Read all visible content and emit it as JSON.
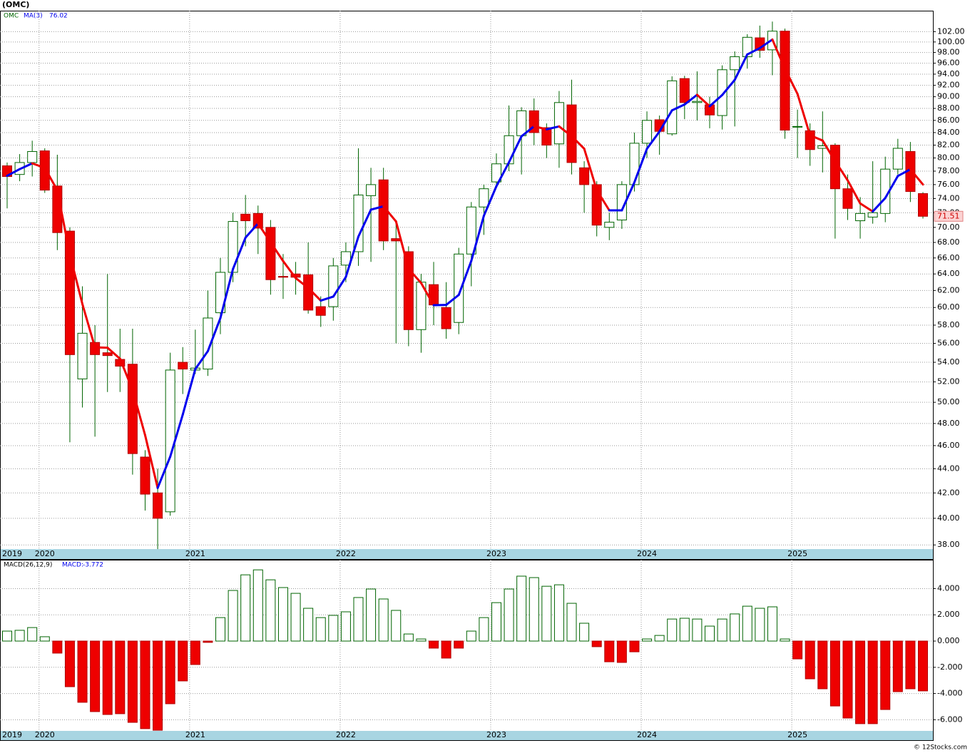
{
  "chart_data": [
    {
      "type": "candlestick",
      "title": "(OMC)",
      "symbol": "OMC",
      "log_scale": true,
      "grid": true,
      "up_color": "#ffffff",
      "down_color": "#ee0000",
      "outline_color": "#006400",
      "categories": [
        "2019",
        null,
        null,
        "2020",
        null,
        null,
        null,
        null,
        null,
        null,
        null,
        null,
        null,
        null,
        null,
        "2021",
        null,
        null,
        null,
        null,
        null,
        null,
        null,
        null,
        null,
        null,
        null,
        "2022",
        null,
        null,
        null,
        null,
        null,
        null,
        null,
        null,
        null,
        null,
        null,
        "2023",
        null,
        null,
        null,
        null,
        null,
        null,
        null,
        null,
        null,
        null,
        null,
        "2024",
        null,
        null,
        null,
        null,
        null,
        null,
        null,
        null,
        null,
        null,
        null,
        "2025",
        null,
        null,
        null,
        null,
        null,
        null,
        null,
        null,
        null,
        null
      ],
      "open": [
        78.8,
        77.5,
        79.3,
        81.1,
        75.8,
        69.5,
        52.3,
        56.1,
        55.0,
        54.3,
        53.8,
        45.0,
        42.0,
        40.5,
        54.0,
        53.2,
        53.3,
        59.4,
        64.2,
        71.8,
        71.9,
        70.0,
        63.7,
        64.0,
        63.9,
        60.1,
        60.1,
        65.1,
        66.8,
        74.4,
        76.7,
        68.5,
        66.8,
        57.5,
        62.7,
        60.0,
        58.3,
        66.5,
        72.8,
        76.4,
        79.1,
        83.5,
        87.6,
        84.8,
        82.2,
        88.6,
        78.5,
        76.0,
        70.0,
        71.0,
        76.0,
        82.3,
        86.1,
        83.8,
        93.2,
        89.0,
        88.6,
        86.8,
        94.8,
        97.2,
        100.8,
        98.5,
        102.1,
        84.9,
        84.3,
        81.5,
        82.0,
        75.4,
        70.9,
        71.4,
        71.9,
        78.3,
        81.0,
        74.7
      ],
      "high": [
        79.3,
        80.6,
        82.7,
        81.5,
        80.5,
        70.0,
        62.5,
        58.0,
        64.0,
        57.6,
        57.6,
        45.6,
        44.0,
        55.0,
        55.6,
        57.5,
        62.0,
        66.0,
        72.0,
        74.5,
        73.0,
        71.0,
        66.5,
        65.5,
        68.0,
        61.3,
        66.0,
        68.0,
        81.5,
        78.5,
        78.5,
        71.0,
        67.5,
        64.0,
        65.5,
        63.0,
        67.3,
        73.5,
        76.0,
        80.7,
        88.5,
        88.2,
        89.7,
        85.5,
        91.0,
        93.0,
        79.5,
        76.5,
        72.0,
        76.5,
        84.0,
        87.5,
        86.8,
        93.6,
        93.7,
        94.5,
        90.0,
        95.6,
        98.2,
        101.5,
        103.2,
        104.0,
        102.6,
        87.8,
        85.5,
        87.5,
        82.3,
        77.5,
        74.2,
        79.5,
        80.2,
        83.0,
        82.5,
        74.9
      ],
      "low": [
        72.6,
        76.5,
        77.2,
        74.8,
        67.0,
        46.3,
        49.5,
        46.8,
        51.0,
        51.0,
        43.5,
        40.6,
        37.7,
        40.2,
        50.8,
        52.8,
        52.6,
        57.0,
        63.0,
        67.5,
        66.5,
        61.5,
        61.0,
        61.5,
        59.3,
        57.8,
        58.5,
        63.0,
        65.0,
        65.5,
        67.0,
        56.0,
        55.7,
        55.0,
        58.0,
        56.5,
        57.0,
        62.5,
        69.0,
        75.5,
        78.0,
        77.5,
        82.0,
        80.0,
        78.5,
        77.5,
        72.0,
        68.8,
        68.3,
        69.8,
        75.0,
        80.0,
        80.5,
        83.5,
        86.2,
        86.0,
        84.7,
        84.5,
        85.0,
        95.0,
        97.0,
        93.8,
        83.0,
        80.0,
        78.8,
        77.8,
        68.5,
        71.0,
        68.5,
        70.5,
        70.7,
        77.5,
        73.5,
        71.2
      ],
      "close": [
        77.2,
        79.3,
        81.0,
        75.2,
        69.3,
        54.8,
        57.1,
        54.8,
        54.7,
        53.6,
        45.3,
        41.9,
        40.0,
        53.2,
        53.3,
        53.4,
        58.8,
        64.2,
        70.8,
        70.9,
        69.9,
        63.3,
        63.6,
        63.6,
        59.7,
        59.1,
        65.0,
        66.8,
        74.5,
        76.0,
        68.2,
        68.2,
        57.5,
        63.0,
        60.3,
        57.6,
        66.5,
        72.8,
        75.4,
        79.1,
        83.5,
        87.6,
        84.0,
        82.0,
        89.0,
        79.3,
        76.0,
        70.3,
        70.7,
        76.0,
        82.3,
        86.0,
        84.2,
        92.8,
        89.0,
        89.2,
        86.9,
        94.8,
        97.2,
        100.9,
        98.4,
        102.1,
        84.4,
        85.0,
        81.3,
        81.9,
        75.4,
        72.6,
        71.9,
        72.0,
        78.3,
        81.5,
        75.0,
        71.51
      ],
      "series": [
        {
          "name": "MA(3)",
          "up_color": "#0000ee",
          "down_color": "#ee0000",
          "values": [
            77.3,
            78.3,
            79.17,
            78.5,
            75.17,
            66.43,
            60.4,
            55.57,
            55.53,
            54.37,
            51.2,
            46.93,
            42.4,
            45.03,
            48.83,
            53.3,
            55.17,
            58.8,
            64.6,
            68.63,
            70.53,
            68.03,
            65.6,
            63.5,
            62.3,
            60.8,
            61.27,
            63.63,
            68.77,
            72.43,
            72.9,
            70.8,
            64.63,
            62.9,
            60.27,
            60.3,
            61.47,
            65.63,
            71.57,
            75.77,
            79.33,
            83.4,
            85.03,
            84.53,
            85.0,
            83.43,
            81.43,
            75.2,
            72.33,
            72.33,
            76.33,
            81.43,
            84.17,
            87.67,
            88.67,
            90.33,
            88.37,
            90.3,
            92.97,
            97.63,
            98.83,
            100.47,
            94.97,
            90.5,
            83.57,
            82.73,
            79.53,
            76.63,
            73.3,
            72.17,
            74.07,
            77.27,
            78.27,
            76.02
          ]
        }
      ],
      "ylim": [
        37.7,
        106.2
      ],
      "yticks": [
        {
          "value": 38,
          "label": "38.00"
        },
        {
          "value": 40,
          "label": "40.00"
        },
        {
          "value": 42,
          "label": "42.00"
        },
        {
          "value": 44,
          "label": "44.00"
        },
        {
          "value": 46,
          "label": "46.00"
        },
        {
          "value": 48,
          "label": "48.00"
        },
        {
          "value": 50,
          "label": "50.00"
        },
        {
          "value": 52,
          "label": "52.00"
        },
        {
          "value": 54,
          "label": "54.00"
        },
        {
          "value": 56,
          "label": "56.00"
        },
        {
          "value": 58,
          "label": "58.00"
        },
        {
          "value": 60,
          "label": "60.00"
        },
        {
          "value": 62,
          "label": "62.00"
        },
        {
          "value": 64,
          "label": "64.00"
        },
        {
          "value": 66,
          "label": "66.00"
        },
        {
          "value": 68,
          "label": "68.00"
        },
        {
          "value": 70,
          "label": "70.00"
        },
        {
          "value": 72,
          "label": "72.00"
        },
        {
          "value": 74,
          "label": "74.00"
        },
        {
          "value": 76,
          "label": "76.00"
        },
        {
          "value": 78,
          "label": "78.00"
        },
        {
          "value": 80,
          "label": "80.00"
        },
        {
          "value": 82,
          "label": "82.00"
        },
        {
          "value": 84,
          "label": "84.00"
        },
        {
          "value": 86,
          "label": "86.00"
        },
        {
          "value": 88,
          "label": "88.00"
        },
        {
          "value": 90,
          "label": "90.00"
        },
        {
          "value": 92,
          "label": "92.00"
        },
        {
          "value": 94,
          "label": "94.00"
        },
        {
          "value": 96,
          "label": "96.00"
        },
        {
          "value": 98,
          "label": "98.00"
        },
        {
          "value": 100,
          "label": "100.00"
        },
        {
          "value": 102,
          "label": "102.00"
        }
      ]
    },
    {
      "type": "bar",
      "title": "MACD(26,12,9)",
      "indicator_label": "MACD:",
      "indicator_value": -3.772,
      "grid": true,
      "up_color": "#ffffff",
      "down_color": "#ee0000",
      "outline_color": "#006400",
      "categories": [
        "2019",
        null,
        null,
        "2020",
        null,
        null,
        null,
        null,
        null,
        null,
        null,
        null,
        null,
        null,
        null,
        "2021",
        null,
        null,
        null,
        null,
        null,
        null,
        null,
        null,
        null,
        null,
        null,
        "2022",
        null,
        null,
        null,
        null,
        null,
        null,
        null,
        null,
        null,
        null,
        null,
        "2023",
        null,
        null,
        null,
        null,
        null,
        null,
        null,
        null,
        null,
        null,
        null,
        "2024",
        null,
        null,
        null,
        null,
        null,
        null,
        null,
        null,
        null,
        null,
        null,
        "2025",
        null,
        null,
        null,
        null,
        null,
        null,
        null,
        null,
        null,
        null
      ],
      "values": [
        0.76,
        0.82,
        1.03,
        0.33,
        -0.92,
        -3.48,
        -4.67,
        -5.38,
        -5.6,
        -5.54,
        -6.2,
        -6.68,
        -6.8,
        -4.78,
        -3.04,
        -1.79,
        -0.1,
        1.79,
        3.86,
        5.05,
        5.43,
        4.67,
        4.08,
        3.64,
        2.5,
        1.79,
        1.96,
        2.23,
        3.32,
        3.97,
        3.21,
        2.34,
        0.54,
        0.16,
        -0.54,
        -1.3,
        -0.54,
        0.76,
        1.79,
        2.93,
        3.97,
        4.95,
        4.84,
        4.18,
        4.29,
        2.88,
        1.36,
        -0.43,
        -1.58,
        -1.63,
        -0.82,
        0.16,
        0.43,
        1.68,
        1.74,
        1.68,
        1.14,
        1.68,
        2.07,
        2.66,
        2.5,
        2.61,
        0.16,
        -1.36,
        -2.88,
        -3.64,
        -4.95,
        -5.87,
        -6.3,
        -6.3,
        -5.22,
        -3.86,
        -3.64,
        -3.8
      ],
      "ylim": [
        -6.85,
        6.2
      ],
      "yticks": [
        {
          "value": -6,
          "label": "-6.000"
        },
        {
          "value": -4,
          "label": "-4.000"
        },
        {
          "value": -2,
          "label": "-2.000"
        },
        {
          "value": 0,
          "label": "0.000"
        },
        {
          "value": 2,
          "label": "2.000"
        },
        {
          "value": 4,
          "label": "4.000"
        }
      ]
    }
  ],
  "footer": "© 12Stocks.com"
}
